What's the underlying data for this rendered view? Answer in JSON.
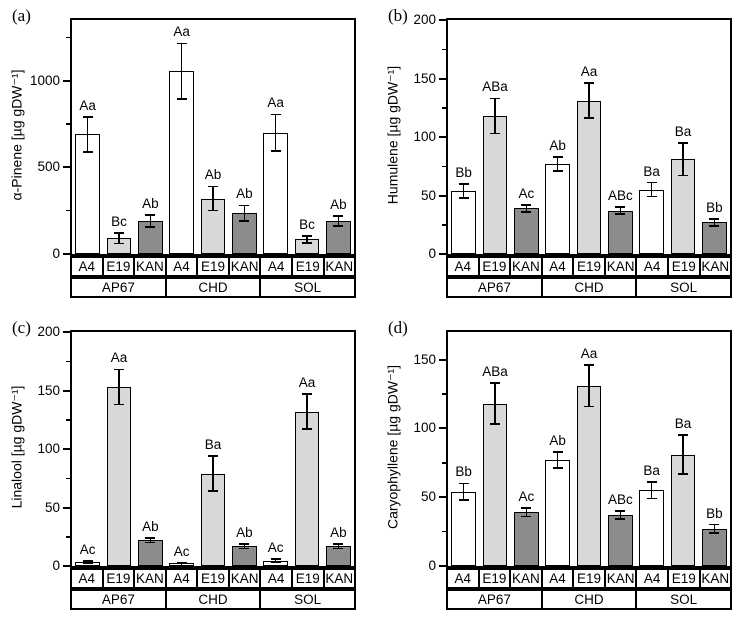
{
  "figure": {
    "background": "#ffffff",
    "axis_color": "#000000",
    "bar_colors": {
      "A4": "#ffffff",
      "E19": "#d8d8d8",
      "KAN": "#8c8c8c"
    }
  },
  "chart_data": [
    {
      "type": "bar",
      "panel_label": "(a)",
      "title": "",
      "xlabel": "",
      "ylabel": "α-Pinene [µg gDW⁻¹]",
      "ylim": [
        0,
        1350
      ],
      "yticks_major": [
        0,
        500,
        1000
      ],
      "yticks_minor": [
        250,
        750,
        1250
      ],
      "grid": false,
      "legend": "none",
      "groups": [
        "AP67",
        "CHD",
        "SOL"
      ],
      "treatments": [
        "A4",
        "E19",
        "KAN"
      ],
      "values": [
        [
          690,
          90,
          190
        ],
        [
          1055,
          320,
          235
        ],
        [
          700,
          85,
          190
        ]
      ],
      "errors": [
        [
          100,
          30,
          35
        ],
        [
          160,
          70,
          45
        ],
        [
          105,
          20,
          30
        ]
      ],
      "letters": [
        [
          "Aa",
          "Bc",
          "Ab"
        ],
        [
          "Aa",
          "Ab",
          "Ab"
        ],
        [
          "Aa",
          "Bc",
          "Ab"
        ]
      ]
    },
    {
      "type": "bar",
      "panel_label": "(b)",
      "title": "",
      "xlabel": "",
      "ylabel": "Humulene [µg gDW⁻¹]",
      "ylim": [
        0,
        200
      ],
      "yticks_major": [
        0,
        50,
        100,
        150,
        200
      ],
      "yticks_minor": [
        25,
        75,
        125,
        175
      ],
      "grid": false,
      "legend": "none",
      "groups": [
        "AP67",
        "CHD",
        "SOL"
      ],
      "treatments": [
        "A4",
        "E19",
        "KAN"
      ],
      "values": [
        [
          54,
          118,
          39
        ],
        [
          77,
          131,
          37
        ],
        [
          55,
          81,
          27
        ]
      ],
      "errors": [
        [
          6,
          15,
          3
        ],
        [
          6,
          15,
          3
        ],
        [
          6,
          14,
          3
        ]
      ],
      "letters": [
        [
          "Bb",
          "ABa",
          "Ac"
        ],
        [
          "Ab",
          "Aa",
          "ABc"
        ],
        [
          "Ba",
          "Ba",
          "Bb"
        ]
      ]
    },
    {
      "type": "bar",
      "panel_label": "(c)",
      "title": "",
      "xlabel": "",
      "ylabel": "Linalool [µg gDW⁻¹]",
      "ylim": [
        0,
        200
      ],
      "yticks_major": [
        0,
        50,
        100,
        150,
        200
      ],
      "yticks_minor": [
        25,
        75,
        125,
        175
      ],
      "grid": false,
      "legend": "none",
      "groups": [
        "AP67",
        "CHD",
        "SOL"
      ],
      "treatments": [
        "A4",
        "E19",
        "KAN"
      ],
      "values": [
        [
          3.5,
          153,
          22
        ],
        [
          1.5,
          79,
          17
        ],
        [
          4.5,
          132,
          17
        ]
      ],
      "errors": [
        [
          1,
          15,
          2
        ],
        [
          1,
          15,
          2
        ],
        [
          1.5,
          15,
          2
        ]
      ],
      "letters": [
        [
          "Ac",
          "Aa",
          "Ab"
        ],
        [
          "Ac",
          "Ba",
          "Ab"
        ],
        [
          "Ac",
          "Aa",
          "Ab"
        ]
      ]
    },
    {
      "type": "bar",
      "panel_label": "(d)",
      "title": "",
      "xlabel": "",
      "ylabel": "Caryophyllene [µg gDW⁻¹]",
      "ylim": [
        0,
        170
      ],
      "yticks_major": [
        0,
        50,
        100,
        150
      ],
      "yticks_minor": [
        25,
        75,
        125
      ],
      "grid": false,
      "legend": "none",
      "groups": [
        "AP67",
        "CHD",
        "SOL"
      ],
      "treatments": [
        "A4",
        "E19",
        "KAN"
      ],
      "values": [
        [
          54,
          118,
          39
        ],
        [
          77,
          131,
          37
        ],
        [
          55,
          81,
          27
        ]
      ],
      "errors": [
        [
          6,
          15,
          3
        ],
        [
          6,
          15,
          3
        ],
        [
          6,
          14,
          3
        ]
      ],
      "letters": [
        [
          "Bb",
          "ABa",
          "Ac"
        ],
        [
          "Ab",
          "Aa",
          "ABc"
        ],
        [
          "Ba",
          "Ba",
          "Bb"
        ]
      ]
    }
  ]
}
